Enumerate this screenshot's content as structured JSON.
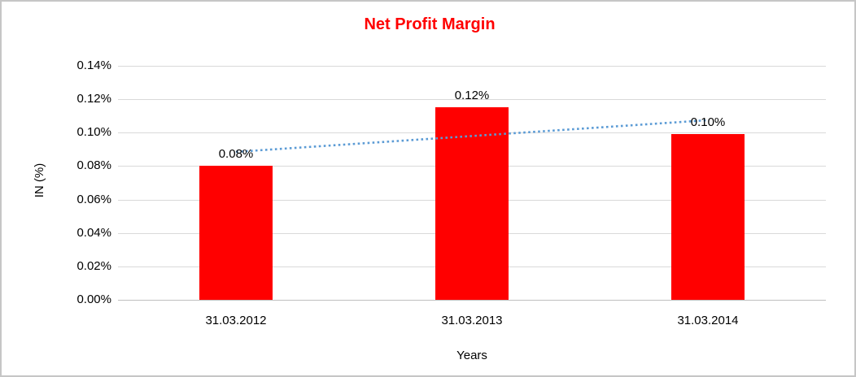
{
  "frame": {
    "border_color": "#c6c6c6",
    "background_color": "#ffffff"
  },
  "chart_data": {
    "type": "bar",
    "title": "Net Profit Margin",
    "title_color": "#ff0000",
    "xlabel": "Years",
    "ylabel": "IN (%)",
    "categories": [
      "31.03.2012",
      "31.03.2013",
      "31.03.2014"
    ],
    "values": [
      0.08,
      0.115,
      0.099
    ],
    "data_labels": [
      "0.08%",
      "0.12%",
      "0.10%"
    ],
    "bar_color": "#ff0000",
    "y_ticks": [
      "0.00%",
      "0.02%",
      "0.04%",
      "0.06%",
      "0.08%",
      "0.10%",
      "0.12%",
      "0.14%"
    ],
    "y_tick_values": [
      0.0,
      0.02,
      0.04,
      0.06,
      0.08,
      0.1,
      0.12,
      0.14
    ],
    "ylim": [
      0,
      0.14
    ],
    "grid": true,
    "gridline_color": "#d9d9d9",
    "axis_line_color": "#bfbfbf",
    "text_color": "#000000",
    "legend": "none",
    "trendline": {
      "type": "linear",
      "style": "dotted",
      "color": "#5b9bd5"
    }
  }
}
